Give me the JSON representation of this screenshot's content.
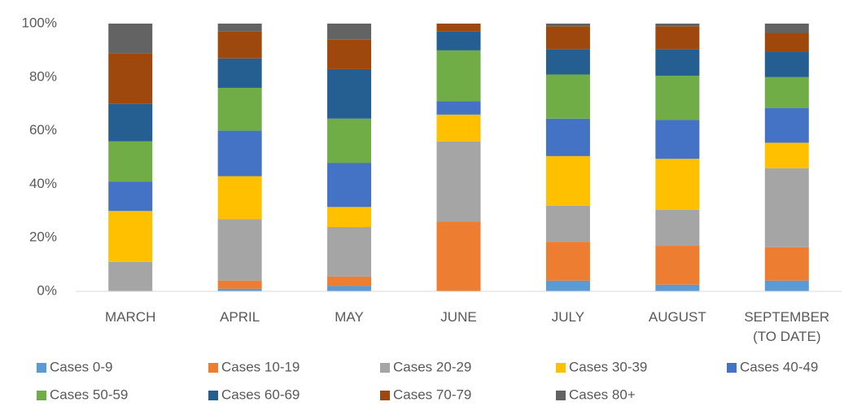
{
  "chart_data": {
    "type": "stacked_bar_100",
    "categories": [
      "MARCH",
      "APRIL",
      "MAY",
      "JUNE",
      "JULY",
      "AUGUST",
      "SEPTEMBER (TO DATE)"
    ],
    "series": [
      {
        "name": "Cases 0-9",
        "color": "#5b9bd5",
        "values": [
          0,
          1,
          2,
          0,
          4,
          2.5,
          4
        ]
      },
      {
        "name": "Cases 10-19",
        "color": "#ed7d31",
        "values": [
          0,
          3,
          3.5,
          26,
          14.5,
          14.5,
          12.5
        ]
      },
      {
        "name": "Cases 20-29",
        "color": "#a5a5a5",
        "values": [
          11,
          23,
          18.5,
          30,
          13.5,
          13.5,
          29.5
        ]
      },
      {
        "name": "Cases 30-39",
        "color": "#ffc000",
        "values": [
          19,
          16,
          7.5,
          10,
          18.5,
          19,
          9.5
        ]
      },
      {
        "name": "Cases 40-49",
        "color": "#4472c4",
        "values": [
          11,
          17,
          16.5,
          5,
          14,
          14.5,
          13
        ]
      },
      {
        "name": "Cases 50-59",
        "color": "#70ad47",
        "values": [
          15,
          16,
          16.5,
          19,
          16.5,
          16.5,
          11.5
        ]
      },
      {
        "name": "Cases 60-69",
        "color": "#255e91",
        "values": [
          14,
          11,
          18.5,
          7,
          9.5,
          10,
          9.5
        ]
      },
      {
        "name": "Cases 70-79",
        "color": "#9e480e",
        "values": [
          19,
          10,
          11,
          3,
          8.5,
          8.5,
          7
        ]
      },
      {
        "name": "Cases 80+",
        "color": "#636363",
        "values": [
          11,
          3,
          6,
          0,
          1,
          1,
          3.5
        ]
      }
    ],
    "ylim": [
      0,
      100
    ],
    "yticks": [
      {
        "value": 0,
        "label": "0%"
      },
      {
        "value": 20,
        "label": "20%"
      },
      {
        "value": 40,
        "label": "40%"
      },
      {
        "value": 60,
        "label": "60%"
      },
      {
        "value": 80,
        "label": "80%"
      },
      {
        "value": 100,
        "label": "100%"
      }
    ],
    "grid": false,
    "legend": "bottom"
  }
}
